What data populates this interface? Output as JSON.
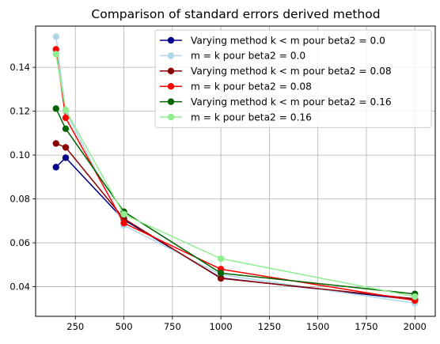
{
  "chart_data": {
    "type": "line",
    "title": "Comparison of standard errors derived method",
    "xlabel": "",
    "ylabel": "",
    "xlim": [
      45,
      2105
    ],
    "ylim": [
      0.0265,
      0.1588
    ],
    "xticks": [
      250,
      500,
      750,
      1000,
      1250,
      1500,
      1750,
      2000
    ],
    "xtick_labels": [
      "250",
      "500",
      "750",
      "1000",
      "1250",
      "1500",
      "1750",
      "2000"
    ],
    "yticks": [
      0.04,
      0.06,
      0.08,
      0.1,
      0.12,
      0.14
    ],
    "ytick_labels": [
      "0.04",
      "0.06",
      "0.08",
      "0.10",
      "0.12",
      "0.14"
    ],
    "grid": true,
    "legend_position": "top-right",
    "x": [
      150,
      200,
      500,
      1000,
      2000
    ],
    "series": [
      {
        "name": "Varying method k < m pour beta2 = 0.0",
        "color": "#00008b",
        "values": [
          0.0945,
          0.0988,
          0.0705,
          0.044,
          0.034
        ]
      },
      {
        "name": "m = k pour beta2 = 0.0",
        "color": "#add8e6",
        "values": [
          0.154,
          0.12,
          0.068,
          0.0455,
          0.0325
        ]
      },
      {
        "name": "Varying method k < m pour beta2 = 0.08",
        "color": "#8b0000",
        "values": [
          0.1053,
          0.1035,
          0.071,
          0.0438,
          0.0345
        ]
      },
      {
        "name": "m = k pour beta2 = 0.08",
        "color": "#ff0000",
        "values": [
          0.1482,
          0.117,
          0.069,
          0.048,
          0.0337
        ]
      },
      {
        "name": "Varying method k < m pour beta2 = 0.16",
        "color": "#006400",
        "values": [
          0.1212,
          0.112,
          0.0742,
          0.0462,
          0.0367
        ]
      },
      {
        "name": "m = k pour beta2 = 0.16",
        "color": "#90ee90",
        "values": [
          0.146,
          0.1205,
          0.073,
          0.0528,
          0.0355
        ]
      }
    ]
  }
}
